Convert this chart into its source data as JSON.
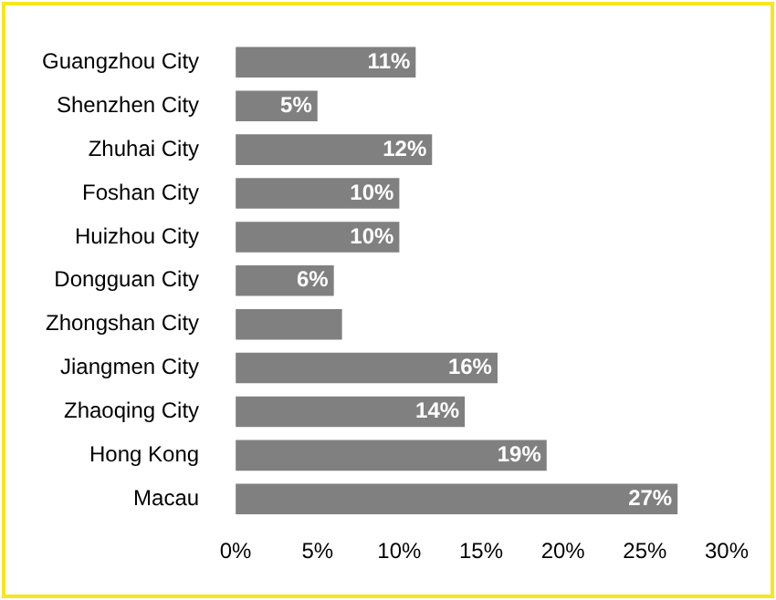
{
  "chart_data": {
    "type": "bar",
    "orientation": "horizontal",
    "categories": [
      "Guangzhou City",
      "Shenzhen City",
      "Zhuhai City",
      "Foshan City",
      "Huizhou City",
      "Dongguan City",
      "Zhongshan City",
      "Jiangmen City",
      "Zhaoqing City",
      "Hong Kong",
      "Macau"
    ],
    "series": [
      {
        "color": "#808080",
        "values": [
          11,
          5,
          12,
          10,
          10,
          6,
          6.5,
          16,
          14,
          19,
          27
        ],
        "value_labels": [
          "11%",
          "5%",
          "12%",
          "10%",
          "10%",
          "6%",
          null,
          "16%",
          "14%",
          "19%",
          "27%"
        ]
      }
    ],
    "xlim": [
      0,
      30
    ],
    "xticks": [
      {
        "value": 0,
        "label": "0%"
      },
      {
        "value": 5,
        "label": "5%"
      },
      {
        "value": 10,
        "label": "10%"
      },
      {
        "value": 15,
        "label": "15%"
      },
      {
        "value": 20,
        "label": "20%"
      },
      {
        "value": 25,
        "label": "25%"
      },
      {
        "value": 30,
        "label": "30%"
      }
    ],
    "grid": false,
    "legend": false
  }
}
